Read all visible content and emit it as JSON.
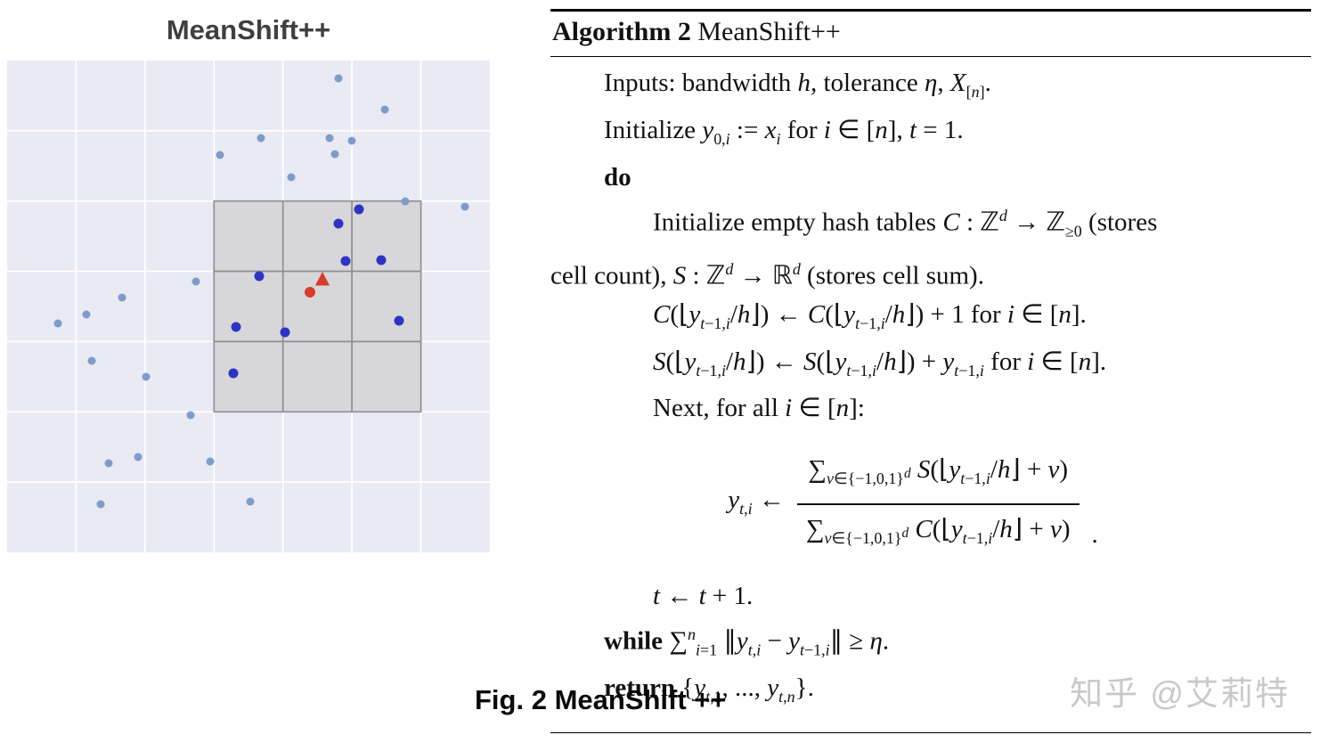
{
  "figure": {
    "caption": "Fig. 2 MeanShift ++",
    "watermark": "知乎 @艾莉特"
  },
  "chart_data": {
    "type": "scatter",
    "title": "MeanShift++",
    "plot": {
      "bg": "#e9eaf3",
      "grid_color": "#ffffff",
      "grid_cols": 7,
      "grid_rows": 7
    },
    "highlight_region": {
      "col": 3,
      "row": 2,
      "span": 3,
      "fill": "#d7d7da",
      "stroke": "#8d8d92"
    },
    "series": [
      {
        "name": "background-points",
        "color": "#7e9cc9",
        "radius": 4.5,
        "points": [
          [
            372,
            20
          ],
          [
            424,
            55
          ],
          [
            285,
            87
          ],
          [
            362,
            87
          ],
          [
            387,
            90
          ],
          [
            239,
            106
          ],
          [
            368,
            105
          ],
          [
            319,
            131
          ],
          [
            447,
            158
          ],
          [
            514,
            164
          ],
          [
            212,
            248
          ],
          [
            129,
            266
          ],
          [
            89,
            285
          ],
          [
            57,
            295
          ],
          [
            95,
            337
          ],
          [
            156,
            355
          ],
          [
            206,
            398
          ],
          [
            147,
            445
          ],
          [
            114,
            452
          ],
          [
            228,
            450
          ],
          [
            105,
            498
          ],
          [
            273,
            495
          ]
        ]
      },
      {
        "name": "window-points",
        "color": "#2d34c4",
        "radius": 5.5,
        "points": [
          [
            395,
            167
          ],
          [
            372,
            183
          ],
          [
            380,
            225
          ],
          [
            420,
            224
          ],
          [
            283,
            242
          ],
          [
            257,
            299
          ],
          [
            312,
            305
          ],
          [
            440,
            292
          ],
          [
            254,
            351
          ]
        ]
      },
      {
        "name": "mean-point",
        "color": "#d93a2e",
        "radius": 6,
        "points": [
          [
            340,
            260
          ]
        ]
      },
      {
        "name": "shifted-mean-marker",
        "color": "#d93a2e",
        "marker": "triangle",
        "size": 9,
        "points": [
          [
            354,
            246
          ]
        ]
      }
    ]
  },
  "algorithm": {
    "header_label": "Algorithm 2",
    "header_title": " MeanShift++",
    "lines": [
      {
        "html": "Inputs: bandwidth <i>h</i>, tolerance <i>η</i>, <i>X</i><sub>[<i>n</i>]</sub>."
      },
      {
        "html": "Initialize <i>y</i><sub>0,<i>i</i></sub> := <i>x</i><sub><i>i</i></sub> for <i>i</i> ∈ [<i>n</i>], <i>t</i> = 1."
      },
      {
        "html": "<b>do</b>"
      },
      {
        "html": "Initialize empty hash tables <i>C</i> : ℤ<sup><i>d</i></sup> → ℤ<sub>≥0</sub> (stores"
      },
      {
        "html": "cell count), <i>S</i> : ℤ<sup><i>d</i></sup> → ℝ<sup><i>d</i></sup> (stores cell sum)."
      },
      {
        "html": "<i>C</i>(⌊<i>y</i><sub><i>t</i>−1,<i>i</i></sub>/<i>h</i>⌋) ← <i>C</i>(⌊<i>y</i><sub><i>t</i>−1,<i>i</i></sub>/<i>h</i>⌋) + 1 for <i>i</i> ∈ [<i>n</i>]."
      },
      {
        "html": "<i>S</i>(⌊<i>y</i><sub><i>t</i>−1,<i>i</i></sub>/<i>h</i>⌋) ← <i>S</i>(⌊<i>y</i><sub><i>t</i>−1,<i>i</i></sub>/<i>h</i>⌋) + <i>y</i><sub><i>t</i>−1,<i>i</i></sub> for <i>i</i> ∈ [<i>n</i>]."
      },
      {
        "html": "Next, for all <i>i</i> ∈ [<i>n</i>]:"
      },
      {
        "html": "<i>t</i> ← <i>t</i> + 1."
      },
      {
        "html": "<b>while</b> ∑<sup><i>n</i></sup><sub><i>i</i>=1</sub> ∥<i>y</i><sub><i>t</i>,<i>i</i></sub> − <i>y</i><sub><i>t</i>−1,<i>i</i></sub>∥ ≥ <i>η</i>."
      },
      {
        "html": "<b>return</b> {<i>y</i><sub><i>t</i>,1</sub>, ..., <i>y</i><sub><i>t</i>,<i>n</i></sub>}."
      }
    ],
    "equation": {
      "lhs": "<i>y</i><sub><i>t</i>,<i>i</i></sub> ←",
      "numerator": "∑<sub><i>v</i>∈{−1,0,1}<sup><i>d</i></sup></sub> <i>S</i>(⌊<i>y</i><sub><i>t</i>−1,<i>i</i></sub>/<i>h</i>⌋ + <i>v</i>)",
      "denominator": "∑<sub><i>v</i>∈{−1,0,1}<sup><i>d</i></sup></sub> <i>C</i>(⌊<i>y</i><sub><i>t</i>−1,<i>i</i></sub>/<i>h</i>⌋ + <i>v</i>)",
      "period": "."
    }
  }
}
